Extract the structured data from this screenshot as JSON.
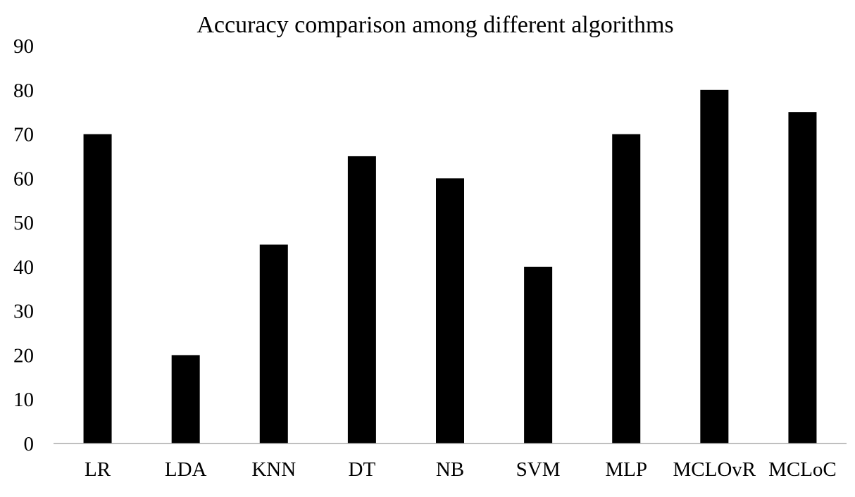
{
  "chart_data": {
    "type": "bar",
    "title": "Accuracy comparison among different algorithms",
    "xlabel": "",
    "ylabel": "",
    "categories": [
      "LR",
      "LDA",
      "KNN",
      "DT",
      "NB",
      "SVM",
      "MLP",
      "MCLOvR",
      "MCLoC"
    ],
    "values": [
      70,
      20,
      45,
      65,
      60,
      40,
      70,
      80,
      75
    ],
    "ylim": [
      0,
      90
    ],
    "yticks": [
      "0",
      "10",
      "20",
      "30",
      "40",
      "50",
      "60",
      "70",
      "80",
      "90"
    ],
    "grid": false,
    "legend": "none",
    "bar_color": "#000000",
    "axis_color": "#aaaaaa"
  }
}
